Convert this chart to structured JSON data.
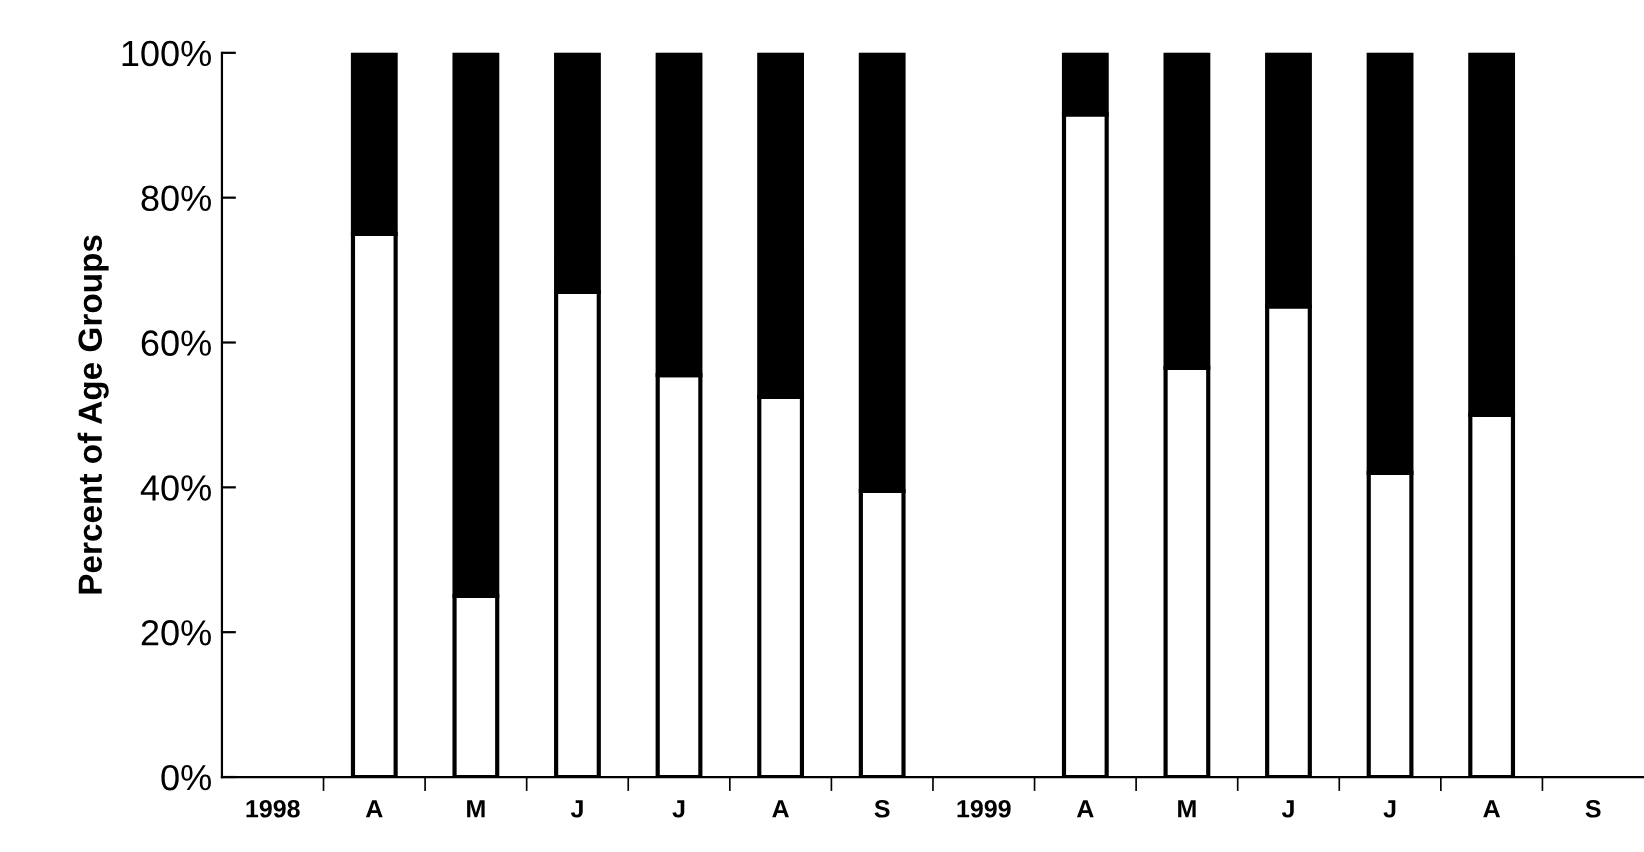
{
  "chart_data": {
    "type": "bar",
    "stacked": true,
    "ylabel": "Percent of Age Groups",
    "categories": [
      "1998",
      "A",
      "M",
      "J",
      "J",
      "A",
      "S",
      "1999",
      "A",
      "M",
      "J",
      "J",
      "A",
      "S"
    ],
    "series": [
      {
        "color": "#ffffff",
        "values": [
          null,
          75,
          25,
          67,
          55.5,
          52.5,
          39.5,
          null,
          91.5,
          56.5,
          65,
          42,
          50,
          null
        ]
      },
      {
        "color": "#000000",
        "values": [
          null,
          25,
          75,
          33,
          44.5,
          47.5,
          60.5,
          null,
          8.5,
          43.5,
          35,
          58,
          50,
          null
        ]
      }
    ],
    "ylim": [
      0,
      100
    ],
    "yticks": [
      {
        "value": 0,
        "label": "0%"
      },
      {
        "value": 20,
        "label": "20%"
      },
      {
        "value": 40,
        "label": "40%"
      },
      {
        "value": 60,
        "label": "60%"
      },
      {
        "value": 80,
        "label": "80%"
      },
      {
        "value": 100,
        "label": "100%"
      }
    ],
    "grid": false,
    "legend": false
  }
}
